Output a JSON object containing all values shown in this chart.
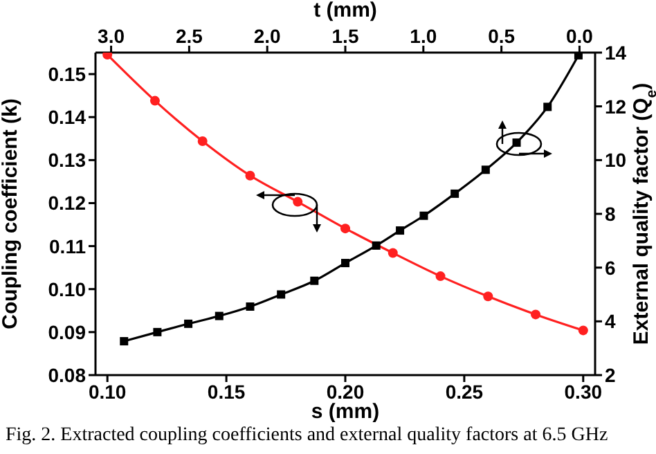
{
  "chart_data": {
    "type": "line",
    "xlabel": "s (mm)",
    "ylabel": "Coupling coefficient (k)",
    "y2label": "External quality factor (Q$_{e}$)",
    "x2label": "t (mm)",
    "annotations": [
      "Fig. 2. Extracted coupling coefficients and external quality factors at 6.5 GHz"
    ],
    "xlim": [
      0.095,
      0.305
    ],
    "xticks": [
      {
        "value": 0.1,
        "label": "0.10"
      },
      {
        "value": 0.15,
        "label": "0.15"
      },
      {
        "value": 0.2,
        "label": "0.20"
      },
      {
        "value": 0.25,
        "label": "0.25"
      },
      {
        "value": 0.3,
        "label": "0.30"
      }
    ],
    "x2lim": [
      3.1,
      -0.1
    ],
    "x2ticks": [
      {
        "value": 3,
        "label": "3.0"
      },
      {
        "value": 2.5,
        "label": "2.5"
      },
      {
        "value": 2,
        "label": "2.0"
      },
      {
        "value": 1.5,
        "label": "1.5"
      },
      {
        "value": 1,
        "label": "1.0"
      },
      {
        "value": 0.5,
        "label": "0.5"
      },
      {
        "value": 0,
        "label": "0.0"
      }
    ],
    "ylim": [
      0.08,
      0.155
    ],
    "yticks": [
      0.08,
      0.09,
      {
        "value": 0.1,
        "label": "0.10"
      },
      0.11,
      0.12,
      0.13,
      0.14,
      0.15
    ],
    "y2lim": [
      2,
      14
    ],
    "y2ticks": [
      2,
      4,
      6,
      8,
      10,
      12,
      14
    ],
    "grid": false,
    "legend": false,
    "line_style": "solid",
    "series": [
      {
        "color": "#ff2020",
        "marker": "circle",
        "x": [
          0.1,
          0.12,
          0.14,
          0.16,
          0.18,
          0.2,
          0.22,
          0.24,
          0.26,
          0.28,
          0.3
        ],
        "values": [
          0.1545,
          0.1438,
          0.1344,
          0.1264,
          0.1203,
          0.1141,
          0.1084,
          0.103,
          0.0983,
          0.0941,
          0.0904
        ]
      },
      {
        "color": "#000000",
        "marker": "square",
        "axis": "y2",
        "x": [
          0.107,
          0.121,
          0.134,
          0.147,
          0.16,
          0.173,
          0.187,
          0.2,
          0.213,
          0.223,
          0.233,
          0.246,
          0.259,
          0.272,
          0.285,
          0.298
        ],
        "values": [
          3.26,
          3.6,
          3.91,
          4.2,
          4.55,
          5.0,
          5.51,
          6.17,
          6.82,
          7.38,
          7.93,
          8.75,
          9.64,
          10.65,
          11.98,
          13.9
        ]
      }
    ]
  }
}
